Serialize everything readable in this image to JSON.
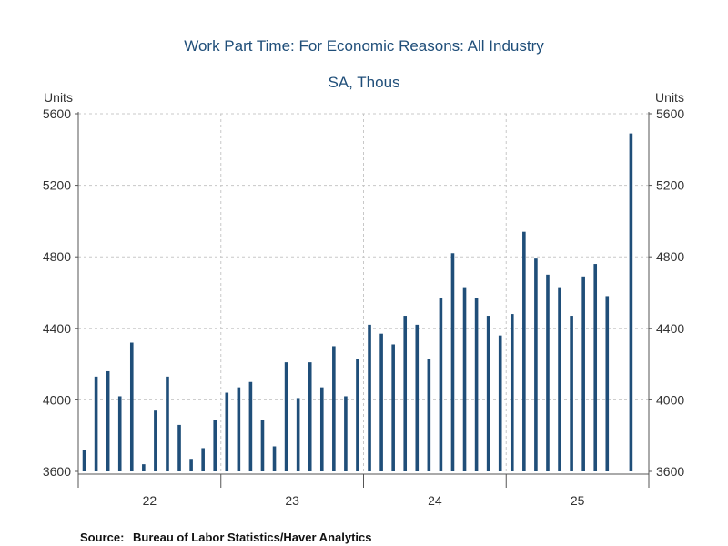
{
  "chart_data": {
    "type": "bar",
    "title": "Work Part Time: For Economic Reasons: All Industry",
    "subtitle": "SA, Thous",
    "ylabel_left": "Units",
    "ylabel_right": "Units",
    "ylim": [
      3600,
      5600
    ],
    "yticks": [
      3600,
      4000,
      4400,
      4800,
      5200,
      5600
    ],
    "ytick_labels": [
      "3600",
      "4000",
      "4400",
      "4800",
      "5200",
      "5600"
    ],
    "year_labels": [
      "22",
      "23",
      "24",
      "25"
    ],
    "start": "2022-01",
    "values": [
      3720,
      4130,
      4160,
      4020,
      4320,
      3640,
      3940,
      4130,
      3860,
      3670,
      3730,
      3890,
      4040,
      4070,
      4100,
      3890,
      3740,
      4210,
      4010,
      4210,
      4070,
      4300,
      4020,
      4230,
      4420,
      4370,
      4310,
      4470,
      4420,
      4230,
      4570,
      4820,
      4630,
      4570,
      4470,
      4360,
      4480,
      4940,
      4790,
      4700,
      4630,
      4470,
      4690,
      4760,
      4580,
      null,
      5490
    ],
    "bar_color": "#1f4e79",
    "grid": true,
    "source_label": "Source:",
    "source_text": "Bureau of Labor Statistics/Haver Analytics"
  }
}
